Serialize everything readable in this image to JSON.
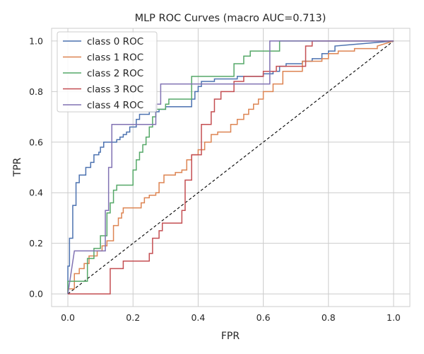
{
  "chart_data": {
    "type": "line",
    "title": "MLP ROC Curves (macro AUC=0.713)",
    "xlabel": "FPR",
    "ylabel": "TPR",
    "xlim": [
      -0.05,
      1.05
    ],
    "ylim": [
      -0.05,
      1.05
    ],
    "xticks": [
      "0.0",
      "0.2",
      "0.4",
      "0.6",
      "0.8",
      "1.0"
    ],
    "yticks": [
      "0.0",
      "0.2",
      "0.4",
      "0.6",
      "0.8",
      "1.0"
    ],
    "grid": true,
    "legend_position": "upper-left",
    "line_shape": "step",
    "reference_line": {
      "x": [
        0,
        1
      ],
      "y": [
        0,
        1
      ],
      "style": "dashed",
      "color": "#000000"
    },
    "series": [
      {
        "name": "class 0 ROC",
        "color": "#4c72b0",
        "x": [
          0,
          0,
          0.005,
          0.005,
          0.015,
          0.015,
          0.025,
          0.025,
          0.035,
          0.035,
          0.055,
          0.055,
          0.07,
          0.07,
          0.08,
          0.08,
          0.095,
          0.095,
          0.1,
          0.1,
          0.11,
          0.11,
          0.15,
          0.15,
          0.16,
          0.16,
          0.17,
          0.17,
          0.18,
          0.18,
          0.19,
          0.19,
          0.21,
          0.21,
          0.22,
          0.22,
          0.25,
          0.25,
          0.28,
          0.28,
          0.3,
          0.3,
          0.38,
          0.38,
          0.39,
          0.39,
          0.4,
          0.4,
          0.41,
          0.41,
          0.45,
          0.45,
          0.52,
          0.52,
          0.6,
          0.6,
          0.63,
          0.63,
          0.65,
          0.65,
          0.67,
          0.67,
          0.72,
          0.72,
          0.75,
          0.75,
          0.78,
          0.78,
          0.8,
          0.8,
          0.82,
          0.82,
          1.0
        ],
        "y": [
          0,
          0.11,
          0.11,
          0.22,
          0.22,
          0.35,
          0.35,
          0.44,
          0.44,
          0.47,
          0.47,
          0.5,
          0.5,
          0.52,
          0.52,
          0.55,
          0.55,
          0.56,
          0.56,
          0.58,
          0.58,
          0.6,
          0.6,
          0.61,
          0.61,
          0.62,
          0.62,
          0.63,
          0.63,
          0.64,
          0.64,
          0.66,
          0.66,
          0.69,
          0.69,
          0.71,
          0.71,
          0.72,
          0.72,
          0.73,
          0.73,
          0.74,
          0.74,
          0.77,
          0.77,
          0.8,
          0.8,
          0.82,
          0.82,
          0.84,
          0.84,
          0.85,
          0.85,
          0.86,
          0.86,
          0.87,
          0.87,
          0.88,
          0.88,
          0.9,
          0.9,
          0.91,
          0.91,
          0.92,
          0.92,
          0.93,
          0.93,
          0.95,
          0.95,
          0.96,
          0.96,
          0.98,
          1.0
        ]
      },
      {
        "name": "class 1 ROC",
        "color": "#dd8452",
        "x": [
          0,
          0,
          0.02,
          0.02,
          0.035,
          0.035,
          0.05,
          0.05,
          0.065,
          0.065,
          0.09,
          0.09,
          0.105,
          0.105,
          0.12,
          0.12,
          0.14,
          0.14,
          0.155,
          0.155,
          0.165,
          0.165,
          0.17,
          0.17,
          0.225,
          0.225,
          0.235,
          0.235,
          0.25,
          0.25,
          0.27,
          0.27,
          0.28,
          0.28,
          0.295,
          0.295,
          0.33,
          0.33,
          0.35,
          0.35,
          0.365,
          0.365,
          0.38,
          0.38,
          0.4,
          0.4,
          0.42,
          0.42,
          0.44,
          0.44,
          0.46,
          0.46,
          0.5,
          0.5,
          0.52,
          0.52,
          0.54,
          0.54,
          0.555,
          0.555,
          0.57,
          0.57,
          0.585,
          0.585,
          0.6,
          0.6,
          0.63,
          0.63,
          0.66,
          0.66,
          0.72,
          0.72,
          0.78,
          0.78,
          0.8,
          0.8,
          0.83,
          0.83,
          0.88,
          0.88,
          0.95,
          0.95,
          1.0
        ],
        "y": [
          0,
          0.02,
          0.02,
          0.08,
          0.08,
          0.1,
          0.1,
          0.12,
          0.12,
          0.15,
          0.15,
          0.17,
          0.17,
          0.19,
          0.19,
          0.21,
          0.21,
          0.27,
          0.27,
          0.3,
          0.3,
          0.32,
          0.32,
          0.34,
          0.34,
          0.36,
          0.36,
          0.38,
          0.38,
          0.39,
          0.39,
          0.4,
          0.4,
          0.44,
          0.44,
          0.47,
          0.47,
          0.48,
          0.48,
          0.49,
          0.49,
          0.53,
          0.53,
          0.55,
          0.55,
          0.57,
          0.57,
          0.6,
          0.6,
          0.63,
          0.63,
          0.64,
          0.64,
          0.67,
          0.67,
          0.69,
          0.69,
          0.71,
          0.71,
          0.73,
          0.73,
          0.75,
          0.75,
          0.77,
          0.77,
          0.8,
          0.8,
          0.83,
          0.83,
          0.88,
          0.88,
          0.92,
          0.92,
          0.93,
          0.93,
          0.95,
          0.95,
          0.96,
          0.96,
          0.97,
          0.97,
          0.98,
          1.0
        ]
      },
      {
        "name": "class 2 ROC",
        "color": "#55a868",
        "x": [
          0,
          0,
          0.06,
          0.06,
          0.08,
          0.08,
          0.1,
          0.1,
          0.12,
          0.12,
          0.13,
          0.13,
          0.14,
          0.14,
          0.15,
          0.15,
          0.2,
          0.2,
          0.21,
          0.21,
          0.22,
          0.22,
          0.23,
          0.23,
          0.24,
          0.24,
          0.25,
          0.25,
          0.26,
          0.26,
          0.27,
          0.27,
          0.3,
          0.3,
          0.31,
          0.31,
          0.38,
          0.38,
          0.41,
          0.41,
          0.51,
          0.51,
          0.54,
          0.54,
          0.56,
          0.56,
          0.65,
          0.65,
          1.0
        ],
        "y": [
          0,
          0.05,
          0.05,
          0.14,
          0.14,
          0.18,
          0.18,
          0.23,
          0.23,
          0.32,
          0.32,
          0.36,
          0.36,
          0.41,
          0.41,
          0.43,
          0.43,
          0.49,
          0.49,
          0.53,
          0.53,
          0.56,
          0.56,
          0.59,
          0.59,
          0.62,
          0.62,
          0.66,
          0.66,
          0.7,
          0.7,
          0.73,
          0.73,
          0.75,
          0.75,
          0.77,
          0.77,
          0.86,
          0.86,
          0.86,
          0.86,
          0.91,
          0.91,
          0.94,
          0.94,
          0.96,
          0.96,
          1.0,
          1.0
        ],
        "note_unused": null
      },
      {
        "name": "class 3 ROC",
        "color": "#c44e52",
        "x": [
          0,
          0.13,
          0.13,
          0.17,
          0.17,
          0.25,
          0.25,
          0.26,
          0.26,
          0.28,
          0.28,
          0.29,
          0.29,
          0.35,
          0.35,
          0.36,
          0.36,
          0.38,
          0.38,
          0.41,
          0.41,
          0.44,
          0.44,
          0.45,
          0.45,
          0.47,
          0.47,
          0.51,
          0.51,
          0.54,
          0.54,
          0.6,
          0.6,
          0.64,
          0.64,
          0.73,
          0.73,
          0.75,
          0.75,
          1.0
        ],
        "y": [
          0,
          0,
          0.1,
          0.1,
          0.13,
          0.13,
          0.16,
          0.16,
          0.22,
          0.22,
          0.25,
          0.25,
          0.28,
          0.28,
          0.33,
          0.33,
          0.45,
          0.45,
          0.55,
          0.55,
          0.67,
          0.67,
          0.72,
          0.72,
          0.77,
          0.77,
          0.8,
          0.8,
          0.84,
          0.84,
          0.86,
          0.86,
          0.88,
          0.88,
          0.9,
          0.9,
          0.98,
          0.98,
          1.0,
          1.0
        ]
      },
      {
        "name": "class 4 ROC",
        "color": "#8172b3",
        "x": [
          0,
          0.02,
          0.02,
          0.115,
          0.115,
          0.125,
          0.125,
          0.135,
          0.135,
          0.27,
          0.27,
          0.285,
          0.285,
          0.62,
          0.62,
          1.0
        ],
        "y": [
          0,
          0.17,
          0.17,
          0.17,
          0.33,
          0.33,
          0.5,
          0.5,
          0.67,
          0.67,
          0.75,
          0.75,
          0.83,
          0.83,
          1.0,
          1.0
        ]
      }
    ]
  }
}
